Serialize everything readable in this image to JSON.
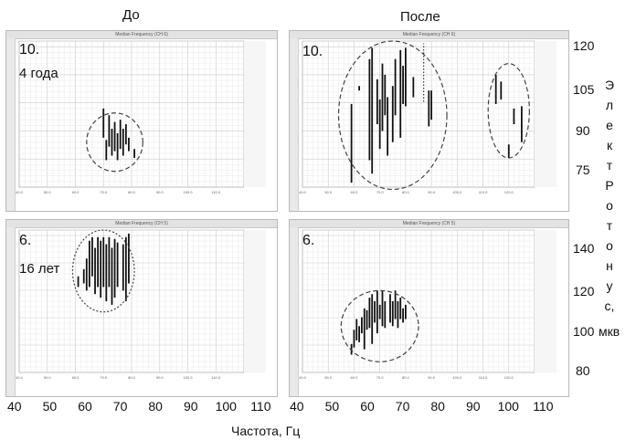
{
  "headers": {
    "before": "До",
    "after": "После"
  },
  "panels": [
    {
      "id": "tl",
      "label": "10.",
      "sublabel": "4 года",
      "chart_title": "Median Frequency (CH 6)"
    },
    {
      "id": "tr",
      "label": "10.",
      "sublabel": "",
      "chart_title": "Median Frequency (CH 6)"
    },
    {
      "id": "bl",
      "label": "6.",
      "sublabel": "16 лет",
      "chart_title": "Median Frequency (CH 5)"
    },
    {
      "id": "br",
      "label": "6.",
      "sublabel": "",
      "chart_title": "Median Frequency (CH 5)"
    }
  ],
  "x_ticks": [
    "40",
    "50",
    "60",
    "70",
    "80",
    "90",
    "100",
    "110"
  ],
  "x_axis_label": "Частота, Гц",
  "y_ticks_top": [
    "120",
    "105",
    "90",
    "75"
  ],
  "y_ticks_bottom": [
    "140",
    "120",
    "100",
    "80"
  ],
  "y_axis_vertical_letters": [
    "Э",
    "л",
    "е",
    "к",
    "т",
    "Р",
    "о",
    "т",
    "о",
    "н",
    "у",
    "с,"
  ],
  "y_axis_unit": "мкв",
  "chart_data": [
    {
      "type": "scatter",
      "panel": "tl",
      "title": "Median Frequency (CH 6)",
      "xlabel": "Частота, Гц",
      "ylabel": "Электротонус, мкв",
      "ylim": [
        60,
        125
      ],
      "cluster_center": [
        74,
        76
      ],
      "segments": [
        [
          70,
          82,
          95
        ],
        [
          71,
          72,
          81
        ],
        [
          72,
          78,
          92
        ],
        [
          73,
          74,
          86
        ],
        [
          74,
          76,
          89
        ],
        [
          75,
          72,
          84
        ],
        [
          76,
          77,
          90
        ],
        [
          77,
          74,
          86
        ],
        [
          78,
          79,
          88
        ],
        [
          79,
          76,
          82
        ],
        [
          81,
          73,
          77
        ]
      ]
    },
    {
      "type": "scatter",
      "panel": "tr",
      "title": "Median Frequency (CH 6)",
      "xlabel": "Частота, Гц",
      "ylabel": "Электротонус, мкв",
      "ylim": [
        60,
        125
      ],
      "cluster_center": [
        75,
        95
      ],
      "segments": [
        [
          59,
          62,
          97
        ],
        [
          62,
          105,
          103
        ],
        [
          66,
          72,
          117
        ],
        [
          67,
          66,
          122
        ],
        [
          69,
          88,
          108
        ],
        [
          70,
          77,
          99
        ],
        [
          71,
          85,
          115
        ],
        [
          72,
          92,
          110
        ],
        [
          73,
          74,
          100
        ],
        [
          75,
          80,
          105
        ],
        [
          76,
          92,
          117
        ],
        [
          78,
          82,
          121
        ],
        [
          79,
          97,
          114
        ],
        [
          80,
          96,
          122
        ],
        [
          83,
          100,
          109
        ],
        [
          89,
          87,
          103
        ],
        [
          90,
          90,
          103
        ],
        [
          115,
          97,
          110
        ],
        [
          117,
          99,
          107
        ],
        [
          120,
          73,
          79
        ],
        [
          122,
          88,
          95
        ],
        [
          125,
          80,
          96
        ]
      ]
    },
    {
      "type": "scatter",
      "panel": "bl",
      "title": "Median Frequency (CH 5)",
      "xlabel": "Частота, Гц",
      "ylabel": "Электротонус, мкв",
      "ylim": [
        70,
        150
      ],
      "cluster_center": [
        70,
        126
      ],
      "segments": [
        [
          61,
          118,
          124
        ],
        [
          63,
          120,
          128
        ],
        [
          64,
          116,
          134
        ],
        [
          65,
          118,
          144
        ],
        [
          66,
          124,
          146
        ],
        [
          67,
          114,
          140
        ],
        [
          68,
          118,
          146
        ],
        [
          69,
          112,
          144
        ],
        [
          70,
          118,
          146
        ],
        [
          71,
          110,
          142
        ],
        [
          72,
          118,
          146
        ],
        [
          73,
          108,
          140
        ],
        [
          74,
          112,
          145
        ],
        [
          75,
          118,
          143
        ],
        [
          77,
          116,
          142
        ],
        [
          78,
          110,
          146
        ],
        [
          79,
          120,
          148
        ]
      ]
    },
    {
      "type": "scatter",
      "panel": "br",
      "title": "Median Frequency (CH 5)",
      "xlabel": "Частота, Гц",
      "ylabel": "Электротонус, мкв",
      "ylim": [
        70,
        150
      ],
      "cluster_center": [
        70,
        95
      ],
      "segments": [
        [
          59,
          80,
          86
        ],
        [
          60,
          84,
          94
        ],
        [
          61,
          88,
          100
        ],
        [
          62,
          87,
          96
        ],
        [
          63,
          92,
          101
        ],
        [
          64,
          83,
          106
        ],
        [
          65,
          94,
          105
        ],
        [
          66,
          95,
          112
        ],
        [
          67,
          86,
          114
        ],
        [
          68,
          98,
          110
        ],
        [
          69,
          92,
          116
        ],
        [
          70,
          100,
          108
        ],
        [
          71,
          96,
          116
        ],
        [
          72,
          95,
          110
        ],
        [
          74,
          98,
          114
        ],
        [
          75,
          96,
          110
        ],
        [
          76,
          100,
          116
        ],
        [
          77,
          95,
          110
        ],
        [
          78,
          100,
          112
        ],
        [
          79,
          98,
          106
        ],
        [
          80,
          100,
          108
        ]
      ]
    }
  ]
}
